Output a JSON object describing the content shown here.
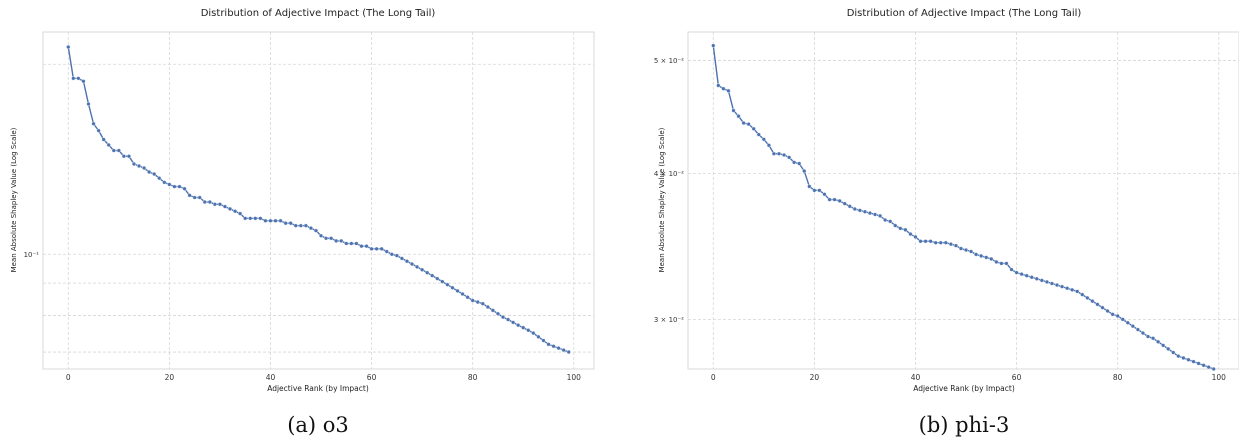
{
  "chart_data": [
    {
      "type": "line",
      "title": "Distribution of Adjective Impact (The Long Tail)",
      "xlabel": "Adjective Rank (by Impact)",
      "ylabel": "Mean Absolute Shapley Value (Log Scale)",
      "yscale": "log",
      "grid": true,
      "xlim": [
        -5,
        104
      ],
      "ylim": [
        0.0658,
        0.225
      ],
      "xticks": [
        0,
        20,
        40,
        60,
        80,
        100
      ],
      "xticklabels": [
        "0",
        "20",
        "40",
        "60",
        "80",
        "100"
      ],
      "yticks": [
        0.1
      ],
      "yticklabels": [
        "10⁻¹"
      ],
      "caption": "(a) o3",
      "color": "#4c72b0",
      "x": [
        0,
        1,
        2,
        3,
        4,
        5,
        6,
        7,
        8,
        9,
        10,
        11,
        12,
        13,
        14,
        15,
        16,
        17,
        18,
        19,
        20,
        21,
        22,
        23,
        24,
        25,
        26,
        27,
        28,
        29,
        30,
        31,
        32,
        33,
        34,
        35,
        36,
        37,
        38,
        39,
        40,
        41,
        42,
        43,
        44,
        45,
        46,
        47,
        48,
        49,
        50,
        51,
        52,
        53,
        54,
        55,
        56,
        57,
        58,
        59,
        60,
        61,
        62,
        63,
        64,
        65,
        66,
        67,
        68,
        69,
        70,
        71,
        72,
        73,
        74,
        75,
        76,
        77,
        78,
        79,
        80,
        81,
        82,
        83,
        84,
        85,
        86,
        87,
        88,
        89,
        90,
        91,
        92,
        93,
        94,
        95,
        96,
        97,
        98,
        99
      ],
      "y": [
        0.213,
        0.19,
        0.19,
        0.188,
        0.173,
        0.161,
        0.157,
        0.152,
        0.149,
        0.146,
        0.146,
        0.143,
        0.143,
        0.139,
        0.138,
        0.137,
        0.135,
        0.134,
        0.132,
        0.13,
        0.129,
        0.128,
        0.128,
        0.127,
        0.124,
        0.123,
        0.123,
        0.121,
        0.121,
        0.12,
        0.12,
        0.119,
        0.118,
        0.117,
        0.116,
        0.114,
        0.114,
        0.114,
        0.114,
        0.113,
        0.113,
        0.113,
        0.113,
        0.112,
        0.112,
        0.111,
        0.111,
        0.111,
        0.11,
        0.109,
        0.107,
        0.106,
        0.106,
        0.105,
        0.105,
        0.104,
        0.104,
        0.104,
        0.103,
        0.103,
        0.102,
        0.102,
        0.102,
        0.101,
        0.1,
        0.0995,
        0.0985,
        0.0975,
        0.0965,
        0.0955,
        0.0945,
        0.0935,
        0.0925,
        0.0915,
        0.0905,
        0.0895,
        0.0885,
        0.0875,
        0.0865,
        0.0855,
        0.0845,
        0.084,
        0.0835,
        0.0825,
        0.0815,
        0.0805,
        0.0795,
        0.0788,
        0.078,
        0.0772,
        0.0765,
        0.0758,
        0.075,
        0.074,
        0.073,
        0.072,
        0.0715,
        0.071,
        0.0705,
        0.07
      ]
    },
    {
      "type": "line",
      "title": "Distribution of Adjective Impact (The Long Tail)",
      "xlabel": "Adjective Rank (by Impact)",
      "ylabel": "Mean Absolute Shapley Value (Log Scale)",
      "yscale": "log",
      "grid": true,
      "xlim": [
        -5,
        104
      ],
      "ylim": [
        0.0272,
        0.0529
      ],
      "xticks": [
        0,
        20,
        40,
        60,
        80,
        100
      ],
      "xticklabels": [
        "0",
        "20",
        "40",
        "60",
        "80",
        "100"
      ],
      "yticks": [
        0.03,
        0.04,
        0.05
      ],
      "yticklabels": [
        "3 × 10⁻²",
        "4 × 10⁻²",
        "5 × 10⁻²"
      ],
      "caption": "(b) phi-3",
      "color": "#4c72b0",
      "x": [
        0,
        1,
        2,
        3,
        4,
        5,
        6,
        7,
        8,
        9,
        10,
        11,
        12,
        13,
        14,
        15,
        16,
        17,
        18,
        19,
        20,
        21,
        22,
        23,
        24,
        25,
        26,
        27,
        28,
        29,
        30,
        31,
        32,
        33,
        34,
        35,
        36,
        37,
        38,
        39,
        40,
        41,
        42,
        43,
        44,
        45,
        46,
        47,
        48,
        49,
        50,
        51,
        52,
        53,
        54,
        55,
        56,
        57,
        58,
        59,
        60,
        61,
        62,
        63,
        64,
        65,
        66,
        67,
        68,
        69,
        70,
        71,
        72,
        73,
        74,
        75,
        76,
        77,
        78,
        79,
        80,
        81,
        82,
        83,
        84,
        85,
        86,
        87,
        88,
        89,
        90,
        91,
        92,
        93,
        94,
        95,
        96,
        97,
        98,
        99
      ],
      "y": [
        0.0515,
        0.0476,
        0.0473,
        0.0471,
        0.0453,
        0.0448,
        0.0442,
        0.0441,
        0.0437,
        0.0432,
        0.0428,
        0.0423,
        0.0416,
        0.0416,
        0.0415,
        0.0413,
        0.0409,
        0.0408,
        0.0402,
        0.039,
        0.0387,
        0.0387,
        0.0384,
        0.038,
        0.038,
        0.0379,
        0.0377,
        0.0375,
        0.0373,
        0.0372,
        0.0371,
        0.037,
        0.0369,
        0.0368,
        0.0365,
        0.0364,
        0.0361,
        0.0359,
        0.0358,
        0.0355,
        0.0353,
        0.035,
        0.035,
        0.035,
        0.0349,
        0.0349,
        0.0349,
        0.0348,
        0.0347,
        0.0345,
        0.0344,
        0.0343,
        0.0341,
        0.034,
        0.0339,
        0.0338,
        0.0336,
        0.0335,
        0.0335,
        0.0331,
        0.0329,
        0.0328,
        0.0327,
        0.0326,
        0.0325,
        0.0324,
        0.0323,
        0.0322,
        0.0321,
        0.032,
        0.0319,
        0.0318,
        0.0317,
        0.0315,
        0.0313,
        0.0311,
        0.0309,
        0.0307,
        0.0305,
        0.0303,
        0.0302,
        0.03,
        0.0298,
        0.0296,
        0.0294,
        0.0292,
        0.029,
        0.0289,
        0.0287,
        0.0285,
        0.0283,
        0.0281,
        0.0279,
        0.0278,
        0.0277,
        0.0276,
        0.0275,
        0.0274,
        0.0273,
        0.0272
      ]
    }
  ]
}
